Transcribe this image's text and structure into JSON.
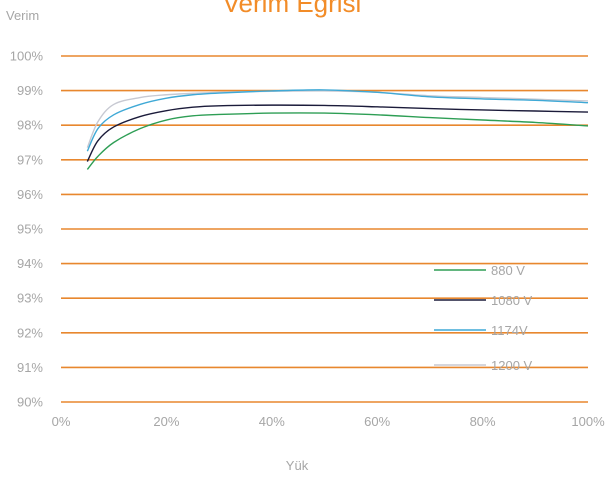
{
  "chart_data": {
    "type": "line",
    "title": "Verim Eğrisi",
    "ylabel": "Verim",
    "xlabel": "Yük",
    "xlim": [
      0,
      100
    ],
    "ylim": [
      90,
      100
    ],
    "x_ticks": [
      0,
      20,
      40,
      60,
      80,
      100
    ],
    "x_tick_labels": [
      "0%",
      "20%",
      "40%",
      "60%",
      "80%",
      "100%"
    ],
    "y_ticks": [
      90,
      91,
      92,
      93,
      94,
      95,
      96,
      97,
      98,
      99,
      100
    ],
    "y_tick_labels": [
      "90%",
      "91%",
      "92%",
      "93%",
      "94%",
      "95%",
      "96%",
      "97%",
      "98%",
      "99%",
      "100%"
    ],
    "grid": "horizontal",
    "legend_position": "right-middle",
    "colors": {
      "title": "#f28c28",
      "grid": "#e8872e",
      "axis_text": "#a6a6a6"
    },
    "series": [
      {
        "name": "880 V",
        "color": "#2e9e55",
        "x": [
          5,
          7,
          10,
          15,
          20,
          25,
          30,
          40,
          50,
          60,
          70,
          80,
          90,
          100
        ],
        "y": [
          96.72,
          97.1,
          97.5,
          97.9,
          98.15,
          98.27,
          98.31,
          98.35,
          98.35,
          98.3,
          98.22,
          98.15,
          98.08,
          97.98
        ]
      },
      {
        "name": "1080 V",
        "color": "#1b1b3a",
        "x": [
          5,
          7,
          10,
          15,
          20,
          25,
          30,
          40,
          50,
          60,
          70,
          80,
          90,
          100
        ],
        "y": [
          96.95,
          97.55,
          97.95,
          98.25,
          98.42,
          98.52,
          98.56,
          98.58,
          98.57,
          98.53,
          98.48,
          98.44,
          98.41,
          98.38
        ]
      },
      {
        "name": "1174V",
        "color": "#3fa9d6",
        "x": [
          5,
          7,
          10,
          15,
          20,
          25,
          30,
          40,
          50,
          60,
          70,
          80,
          90,
          100
        ],
        "y": [
          97.25,
          97.9,
          98.3,
          98.6,
          98.78,
          98.88,
          98.93,
          98.99,
          99.02,
          98.95,
          98.82,
          98.76,
          98.72,
          98.65
        ]
      },
      {
        "name": "1200 V",
        "color": "#c7c9d2",
        "x": [
          5,
          7,
          10,
          15,
          20,
          25,
          30,
          40,
          50,
          60,
          70,
          80,
          90,
          100
        ],
        "y": [
          97.35,
          98.1,
          98.6,
          98.8,
          98.88,
          98.92,
          98.95,
          98.98,
          98.99,
          98.95,
          98.85,
          98.8,
          98.75,
          98.7
        ]
      }
    ]
  }
}
